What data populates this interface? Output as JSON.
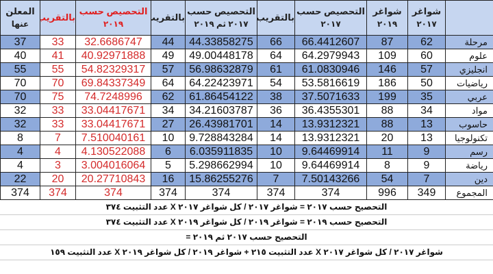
{
  "headers": [
    {
      "line1": "",
      "line2": ""
    },
    {
      "line1": "شواغر",
      "line2": "٢٠١٧"
    },
    {
      "line1": "شواغر",
      "line2": "٢٠١٩"
    },
    {
      "line1": "التحصيص حسب",
      "line2": "٢٠١٧"
    },
    {
      "line1": "بالتقريب",
      "line2": ""
    },
    {
      "line1": "التحصيص حسب",
      "line2": "٢٠١٧ ثم ٢٠١٩"
    },
    {
      "line1": "بالتقريب",
      "line2": ""
    },
    {
      "line1": "التحصيص حسب",
      "line2": "٢٠١٩"
    },
    {
      "line1": "بالتقريب",
      "line2": ""
    },
    {
      "line1": "المعلن",
      "line2": "عنها"
    }
  ],
  "rows": [
    [
      "مرحلة",
      "62",
      "87",
      "66.4412607",
      "66",
      "44.33858275",
      "44",
      "32.6686747",
      "33",
      "37"
    ],
    [
      "علوم",
      "60",
      "109",
      "64.2979943",
      "64",
      "49.00448178",
      "49",
      "40.92971888",
      "41",
      "40"
    ],
    [
      "انجليزي",
      "57",
      "146",
      "61.0830946",
      "61",
      "56.98632879",
      "57",
      "54.82329317",
      "55",
      "55"
    ],
    [
      "رياضيات",
      "50",
      "186",
      "53.5816619",
      "54",
      "64.22423971",
      "64",
      "69.84337349",
      "70",
      "70"
    ],
    [
      "عربي",
      "35",
      "199",
      "37.5071633",
      "38",
      "61.86454122",
      "62",
      "74.7248996",
      "75",
      "70"
    ],
    [
      "مواد",
      "34",
      "88",
      "36.4355301",
      "36",
      "34.21603787",
      "34",
      "33.04417671",
      "33",
      "32"
    ],
    [
      "حاسوب",
      "13",
      "88",
      "13.9312321",
      "14",
      "26.43981701",
      "27",
      "33.04417671",
      "33",
      "32"
    ],
    [
      "تكنولوجيا",
      "13",
      "20",
      "13.9312321",
      "14",
      "9.728843284",
      "10",
      "7.510040161",
      "7",
      "8"
    ],
    [
      "رسم",
      "9",
      "11",
      "9.64469914",
      "10",
      "6.035911835",
      "6",
      "4.130522088",
      "4",
      "4"
    ],
    [
      "رياضة",
      "9",
      "8",
      "9.64469914",
      "10",
      "5.298662994",
      "5",
      "3.004016064",
      "3",
      "4"
    ],
    [
      "دين",
      "7",
      "54",
      "7.50143266",
      "7",
      "15.86255276",
      "16",
      "20.27710843",
      "20",
      "22"
    ]
  ],
  "total": [
    "المجموع",
    "349",
    "996",
    "374",
    "374",
    "374",
    "374",
    "374",
    "374",
    "374"
  ],
  "formulas": [
    "التحصيح حسب ٢٠١٧ = شواغر ٢٠١٧ / كل شواغر ٢٠١٧ X عدد التثبيت ٣٧٤",
    "التحصيح حسب ٢٠١٩ = شواغر ٢٠١٩ / كل شواغر ٢٠١٩ X عدد التثبيت ٣٧٤",
    "التحصيح حسب ٢٠١٧ ثم ٢٠١٩ =",
    "شواغر ٢٠١٧ / كل شواغر ٢٠١٧ X عدد التثبيت ٢١٥ + شواغر ٢٠١٩ / كل شواغر ٢٠١٩ X عدد التثبيت ١٥٩"
  ],
  "colors": {
    "header": "#c6d6f0",
    "shade": "#8eaadb",
    "red": "#d42a2a"
  }
}
